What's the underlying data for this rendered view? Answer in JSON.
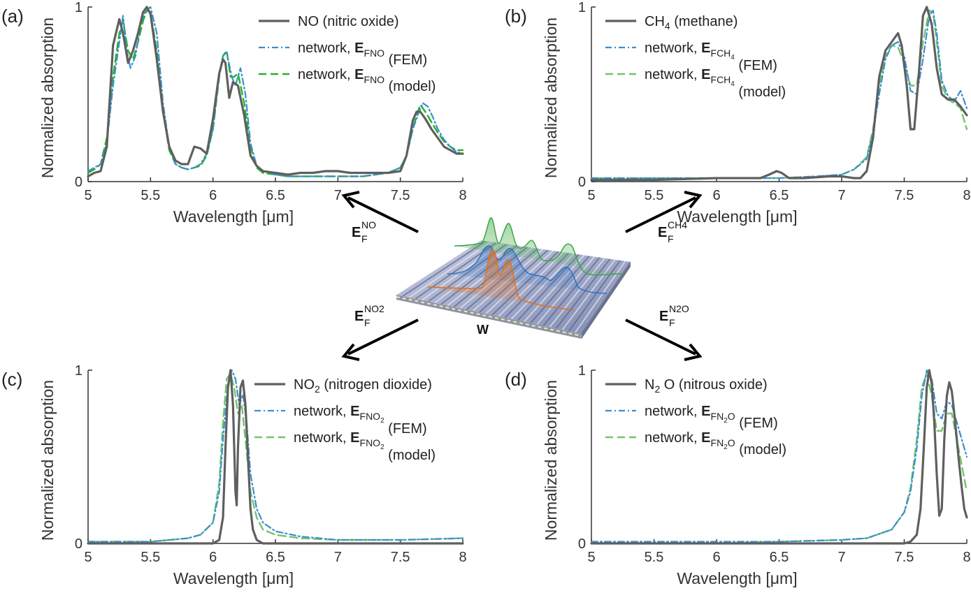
{
  "colors": {
    "measured": "#5f5f5f",
    "fem": "#3a8fd0",
    "model_a": "#1fb51f",
    "model": "#72c46a",
    "axis": "#333333",
    "arrow": "#000000",
    "device_top": "#8a94b6",
    "curve_green": "#3fa34a",
    "curve_blue": "#2f6fc0",
    "curve_orange": "#e07020"
  },
  "device": {
    "label": "W"
  },
  "ef": {
    "no": {
      "main": "E",
      "sub": "F",
      "sup": "NO"
    },
    "ch4": {
      "main": "E",
      "sub": "F",
      "sup": "CH4"
    },
    "no2": {
      "main": "E",
      "sub": "F",
      "sup": "NO2"
    },
    "n2o": {
      "main": "E",
      "sub": "F",
      "sup": "N2O"
    }
  },
  "chart_data": [
    {
      "id": "a",
      "panel_label": "(a)",
      "type": "line",
      "xlabel": "Wavelength [μm]",
      "ylabel": "Normalized absorption",
      "xlim": [
        5,
        8
      ],
      "ylim": [
        0,
        1
      ],
      "xticks": [
        "5",
        "5.5",
        "6",
        "6.5",
        "7",
        "7.5",
        "8"
      ],
      "yticks": [
        "0",
        "1"
      ],
      "legend": {
        "position": "top-right",
        "measured": {
          "name": "NO",
          "sub": "",
          "desc": "(nitric oxide)"
        },
        "fem": {
          "prefix": "network,",
          "E": "E",
          "sub": "F",
          "sup": "NO",
          "suffix": "(FEM)"
        },
        "model": {
          "prefix": "network,",
          "E": "E",
          "sub": "F",
          "sup": "NO",
          "suffix": "(model)"
        }
      },
      "series": [
        {
          "name": "measured",
          "x": [
            5.0,
            5.05,
            5.1,
            5.15,
            5.2,
            5.25,
            5.28,
            5.32,
            5.36,
            5.4,
            5.44,
            5.47,
            5.5,
            5.55,
            5.6,
            5.65,
            5.7,
            5.75,
            5.8,
            5.85,
            5.9,
            5.95,
            6.0,
            6.05,
            6.08,
            6.1,
            6.13,
            6.16,
            6.2,
            6.25,
            6.3,
            6.35,
            6.4,
            6.5,
            6.6,
            6.7,
            6.8,
            6.9,
            7.0,
            7.1,
            7.2,
            7.3,
            7.4,
            7.5,
            7.55,
            7.6,
            7.63,
            7.66,
            7.7,
            7.75,
            7.8,
            7.85,
            7.9,
            7.95,
            8.0
          ],
          "y": [
            0.03,
            0.05,
            0.06,
            0.2,
            0.78,
            0.93,
            0.85,
            0.68,
            0.75,
            0.85,
            0.97,
            1.0,
            0.96,
            0.7,
            0.4,
            0.2,
            0.12,
            0.1,
            0.1,
            0.2,
            0.19,
            0.16,
            0.36,
            0.62,
            0.7,
            0.68,
            0.48,
            0.57,
            0.55,
            0.38,
            0.15,
            0.09,
            0.06,
            0.05,
            0.04,
            0.05,
            0.05,
            0.06,
            0.06,
            0.05,
            0.05,
            0.05,
            0.05,
            0.06,
            0.15,
            0.35,
            0.4,
            0.4,
            0.36,
            0.3,
            0.25,
            0.2,
            0.18,
            0.16,
            0.16
          ]
        },
        {
          "name": "fem",
          "x": [
            5.0,
            5.05,
            5.1,
            5.15,
            5.2,
            5.25,
            5.28,
            5.31,
            5.34,
            5.38,
            5.42,
            5.46,
            5.5,
            5.55,
            5.6,
            5.65,
            5.7,
            5.75,
            5.8,
            5.85,
            5.9,
            5.95,
            6.0,
            6.05,
            6.08,
            6.11,
            6.15,
            6.18,
            6.22,
            6.26,
            6.3,
            6.35,
            6.4,
            6.5,
            6.6,
            6.7,
            6.8,
            6.9,
            7.0,
            7.1,
            7.2,
            7.3,
            7.4,
            7.5,
            7.55,
            7.6,
            7.65,
            7.68,
            7.72,
            7.76,
            7.8,
            7.85,
            7.9,
            7.95,
            8.0
          ],
          "y": [
            0.06,
            0.08,
            0.1,
            0.22,
            0.55,
            0.8,
            0.95,
            0.75,
            0.65,
            0.72,
            0.9,
            0.98,
            1.0,
            0.85,
            0.45,
            0.2,
            0.1,
            0.08,
            0.07,
            0.08,
            0.1,
            0.16,
            0.3,
            0.62,
            0.72,
            0.74,
            0.6,
            0.55,
            0.65,
            0.5,
            0.22,
            0.09,
            0.06,
            0.04,
            0.03,
            0.03,
            0.03,
            0.03,
            0.03,
            0.03,
            0.03,
            0.04,
            0.05,
            0.08,
            0.15,
            0.3,
            0.4,
            0.45,
            0.43,
            0.37,
            0.3,
            0.24,
            0.2,
            0.17,
            0.16
          ]
        },
        {
          "name": "model",
          "x": [
            5.0,
            5.05,
            5.1,
            5.15,
            5.2,
            5.25,
            5.28,
            5.32,
            5.36,
            5.4,
            5.44,
            5.47,
            5.5,
            5.55,
            5.6,
            5.65,
            5.7,
            5.75,
            5.8,
            5.85,
            5.9,
            5.95,
            6.0,
            6.05,
            6.08,
            6.11,
            6.14,
            6.17,
            6.2,
            6.25,
            6.3,
            6.35,
            6.4,
            6.5,
            6.6,
            6.7,
            6.8,
            6.9,
            7.0,
            7.1,
            7.2,
            7.3,
            7.4,
            7.5,
            7.55,
            7.6,
            7.63,
            7.66,
            7.7,
            7.75,
            7.8,
            7.85,
            7.9,
            7.95,
            8.0
          ],
          "y": [
            0.05,
            0.07,
            0.1,
            0.25,
            0.6,
            0.85,
            0.92,
            0.75,
            0.7,
            0.8,
            0.92,
            0.98,
            0.97,
            0.75,
            0.4,
            0.18,
            0.1,
            0.08,
            0.07,
            0.08,
            0.09,
            0.15,
            0.3,
            0.6,
            0.72,
            0.75,
            0.6,
            0.6,
            0.62,
            0.45,
            0.2,
            0.08,
            0.05,
            0.04,
            0.03,
            0.03,
            0.03,
            0.03,
            0.03,
            0.03,
            0.03,
            0.04,
            0.05,
            0.08,
            0.15,
            0.3,
            0.38,
            0.44,
            0.4,
            0.34,
            0.28,
            0.23,
            0.2,
            0.18,
            0.18
          ]
        }
      ]
    },
    {
      "id": "b",
      "panel_label": "(b)",
      "type": "line",
      "xlabel": "Wavelength [μm]",
      "ylabel": "Normalized absorption",
      "xlim": [
        5,
        8
      ],
      "ylim": [
        0,
        1
      ],
      "xticks": [
        "5",
        "5.5",
        "6",
        "6.5",
        "7",
        "7.5",
        "8"
      ],
      "yticks": [
        "0",
        "1"
      ],
      "legend": {
        "position": "top-left",
        "measured": {
          "name": "CH",
          "sub": "4",
          "desc": "(methane)"
        },
        "fem": {
          "prefix": "network,",
          "E": "E",
          "sub": "F",
          "sup": "CH4",
          "suffix": "(FEM)"
        },
        "model": {
          "prefix": "network,",
          "E": "E",
          "sub": "F",
          "sup": "CH4",
          "suffix": "(model)"
        }
      },
      "series": [
        {
          "name": "measured",
          "x": [
            5.0,
            5.5,
            6.0,
            6.2,
            6.35,
            6.42,
            6.48,
            6.52,
            6.58,
            6.7,
            6.9,
            7.0,
            7.1,
            7.15,
            7.2,
            7.25,
            7.3,
            7.35,
            7.4,
            7.45,
            7.48,
            7.52,
            7.55,
            7.58,
            7.62,
            7.65,
            7.68,
            7.72,
            7.76,
            7.8,
            7.85,
            7.9,
            7.95,
            8.0
          ],
          "y": [
            0.01,
            0.01,
            0.02,
            0.02,
            0.02,
            0.04,
            0.06,
            0.05,
            0.02,
            0.02,
            0.03,
            0.03,
            0.02,
            0.02,
            0.06,
            0.25,
            0.6,
            0.75,
            0.8,
            0.85,
            0.78,
            0.55,
            0.3,
            0.3,
            0.65,
            0.95,
            1.0,
            0.9,
            0.65,
            0.5,
            0.47,
            0.47,
            0.43,
            0.38
          ]
        },
        {
          "name": "fem",
          "x": [
            5.0,
            5.5,
            6.0,
            6.5,
            6.8,
            7.0,
            7.1,
            7.2,
            7.25,
            7.3,
            7.35,
            7.4,
            7.45,
            7.5,
            7.55,
            7.6,
            7.65,
            7.7,
            7.73,
            7.76,
            7.8,
            7.85,
            7.9,
            7.95,
            8.0
          ],
          "y": [
            0.02,
            0.02,
            0.02,
            0.02,
            0.03,
            0.04,
            0.07,
            0.13,
            0.28,
            0.5,
            0.7,
            0.78,
            0.8,
            0.72,
            0.52,
            0.5,
            0.7,
            0.95,
            0.98,
            0.85,
            0.58,
            0.49,
            0.46,
            0.52,
            0.42
          ]
        },
        {
          "name": "model",
          "x": [
            5.0,
            5.5,
            6.0,
            6.5,
            6.8,
            7.0,
            7.1,
            7.2,
            7.25,
            7.3,
            7.35,
            7.4,
            7.45,
            7.5,
            7.55,
            7.6,
            7.65,
            7.7,
            7.73,
            7.76,
            7.8,
            7.85,
            7.9,
            7.95,
            8.0
          ],
          "y": [
            0.02,
            0.02,
            0.02,
            0.02,
            0.03,
            0.04,
            0.07,
            0.14,
            0.3,
            0.55,
            0.72,
            0.78,
            0.77,
            0.68,
            0.55,
            0.55,
            0.8,
            0.98,
            0.97,
            0.8,
            0.55,
            0.47,
            0.45,
            0.42,
            0.3
          ]
        }
      ]
    },
    {
      "id": "c",
      "panel_label": "(c)",
      "type": "line",
      "xlabel": "Wavelength [μm]",
      "ylabel": "Normalized absorption",
      "xlim": [
        5,
        8
      ],
      "ylim": [
        0,
        1
      ],
      "xticks": [
        "5",
        "5.5",
        "6",
        "6.5",
        "7",
        "7.5",
        "8"
      ],
      "yticks": [
        "0",
        "1"
      ],
      "legend": {
        "position": "top-right",
        "measured": {
          "name": "NO",
          "sub": "2",
          "desc": "(nitrogen dioxide)"
        },
        "fem": {
          "prefix": "network,",
          "E": "E",
          "sub": "F",
          "sup": "NO2",
          "suffix": "(FEM)"
        },
        "model": {
          "prefix": "network,",
          "E": "E",
          "sub": "F",
          "sup": "NO2",
          "suffix": "(model)"
        }
      },
      "series": [
        {
          "name": "measured",
          "x": [
            5.0,
            6.0,
            6.05,
            6.08,
            6.1,
            6.12,
            6.14,
            6.16,
            6.18,
            6.19,
            6.2,
            6.22,
            6.24,
            6.26,
            6.28,
            6.3,
            6.32,
            6.35,
            6.4,
            6.5,
            7.0,
            8.0
          ],
          "y": [
            0,
            0,
            0.02,
            0.15,
            0.55,
            0.9,
            1.0,
            0.8,
            0.3,
            0.22,
            0.55,
            0.9,
            0.94,
            0.8,
            0.5,
            0.2,
            0.08,
            0.02,
            0,
            0,
            0,
            0
          ]
        },
        {
          "name": "fem",
          "x": [
            5.0,
            5.5,
            5.8,
            5.9,
            6.0,
            6.05,
            6.08,
            6.12,
            6.15,
            6.18,
            6.21,
            6.24,
            6.27,
            6.3,
            6.35,
            6.4,
            6.5,
            6.7,
            7.0,
            7.5,
            8.0
          ],
          "y": [
            0.01,
            0.01,
            0.03,
            0.05,
            0.12,
            0.3,
            0.6,
            0.92,
            1.0,
            0.95,
            0.8,
            0.86,
            0.7,
            0.4,
            0.2,
            0.12,
            0.07,
            0.04,
            0.02,
            0.02,
            0.03
          ]
        },
        {
          "name": "model",
          "x": [
            5.0,
            5.5,
            5.8,
            5.9,
            6.0,
            6.05,
            6.08,
            6.11,
            6.14,
            6.17,
            6.2,
            6.23,
            6.26,
            6.3,
            6.35,
            6.4,
            6.5,
            6.7,
            7.0,
            7.5,
            8.0
          ],
          "y": [
            0.01,
            0.01,
            0.03,
            0.05,
            0.12,
            0.35,
            0.7,
            0.95,
            0.98,
            0.9,
            0.75,
            0.8,
            0.6,
            0.3,
            0.15,
            0.08,
            0.05,
            0.03,
            0.02,
            0.02,
            0.03
          ]
        }
      ]
    },
    {
      "id": "d",
      "panel_label": "(d)",
      "type": "line",
      "xlabel": "Wavelength [μm]",
      "ylabel": "Normalized absorption",
      "xlim": [
        5,
        8
      ],
      "ylim": [
        0,
        1
      ],
      "xticks": [
        "5",
        "5.5",
        "6",
        "6.5",
        "7",
        "7.5",
        "8"
      ],
      "yticks": [
        "0",
        "1"
      ],
      "legend": {
        "position": "top-left",
        "measured": {
          "name": "N",
          "sub": "2",
          "desc": "O  (nitrous oxide)"
        },
        "fem": {
          "prefix": "network,",
          "E": "E",
          "sub": "F",
          "sup": "N2O",
          "suffix": "(FEM)"
        },
        "model": {
          "prefix": "network,",
          "E": "E",
          "sub": "F",
          "sup": "N2O",
          "suffix": "(model)"
        }
      },
      "series": [
        {
          "name": "measured",
          "x": [
            5.0,
            7.5,
            7.55,
            7.6,
            7.63,
            7.66,
            7.68,
            7.7,
            7.72,
            7.74,
            7.76,
            7.78,
            7.8,
            7.82,
            7.84,
            7.86,
            7.88,
            7.9,
            7.92,
            7.94,
            7.96,
            7.98,
            8.0
          ],
          "y": [
            0,
            0,
            0.01,
            0.05,
            0.2,
            0.6,
            0.9,
            1.0,
            0.92,
            0.7,
            0.4,
            0.16,
            0.2,
            0.6,
            0.85,
            0.93,
            0.88,
            0.75,
            0.6,
            0.45,
            0.32,
            0.2,
            0.15
          ]
        },
        {
          "name": "fem",
          "x": [
            5.0,
            6.0,
            6.5,
            7.0,
            7.2,
            7.4,
            7.5,
            7.55,
            7.6,
            7.64,
            7.68,
            7.72,
            7.76,
            7.8,
            7.84,
            7.88,
            7.92,
            7.96,
            8.0
          ],
          "y": [
            0.01,
            0.01,
            0.01,
            0.02,
            0.03,
            0.08,
            0.18,
            0.3,
            0.55,
            0.85,
            1.0,
            0.95,
            0.75,
            0.72,
            0.82,
            0.8,
            0.7,
            0.6,
            0.5
          ]
        },
        {
          "name": "model",
          "x": [
            5.0,
            6.0,
            6.5,
            7.0,
            7.2,
            7.4,
            7.5,
            7.55,
            7.6,
            7.64,
            7.68,
            7.72,
            7.76,
            7.8,
            7.84,
            7.88,
            7.92,
            7.96,
            8.0
          ],
          "y": [
            0,
            0,
            0.01,
            0.02,
            0.03,
            0.08,
            0.18,
            0.32,
            0.6,
            0.9,
            0.98,
            0.85,
            0.65,
            0.65,
            0.75,
            0.75,
            0.6,
            0.45,
            0.3
          ]
        }
      ]
    }
  ]
}
